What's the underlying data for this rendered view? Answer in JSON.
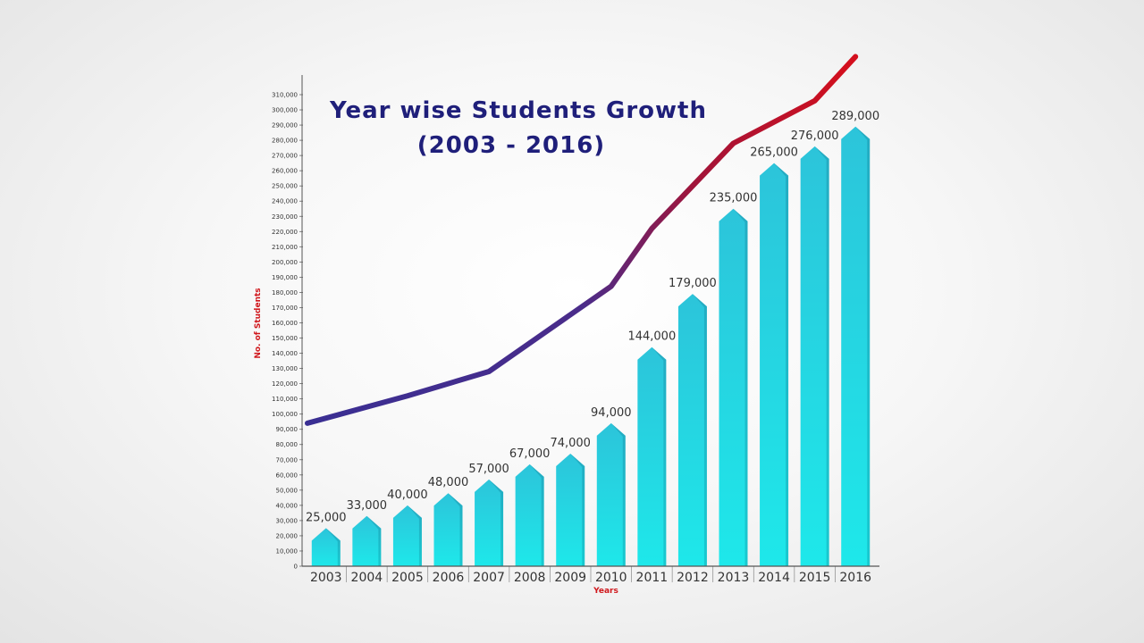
{
  "chart_data": {
    "type": "bar",
    "title": "Year wise Students Growth",
    "subtitle": "(2003 - 2016)",
    "xlabel": "Years",
    "ylabel": "No. of Students",
    "ylim": [
      0,
      310000
    ],
    "categories": [
      "2003",
      "2004",
      "2005",
      "2006",
      "2007",
      "2008",
      "2009",
      "2010",
      "2011",
      "2012",
      "2013",
      "2014",
      "2015",
      "2016"
    ],
    "values": [
      25000,
      33000,
      40000,
      48000,
      57000,
      67000,
      74000,
      94000,
      144000,
      179000,
      235000,
      265000,
      276000,
      289000
    ],
    "data_labels": [
      "25,000",
      "33,000",
      "40,000",
      "48,000",
      "57,000",
      "67,000",
      "74,000",
      "94,000",
      "144,000",
      "179,000",
      "235,000",
      "265,000",
      "276,000",
      "289,000"
    ],
    "yticks": [
      0,
      10000,
      20000,
      30000,
      40000,
      50000,
      60000,
      70000,
      80000,
      90000,
      100000,
      110000,
      120000,
      130000,
      140000,
      150000,
      160000,
      170000,
      180000,
      190000,
      200000,
      210000,
      220000,
      230000,
      240000,
      250000,
      260000,
      270000,
      280000,
      290000,
      300000,
      310000
    ],
    "ytick_labels": [
      "0",
      "10,000",
      "20,000",
      "30,000",
      "40,000",
      "50,000",
      "60,000",
      "70,000",
      "80,000",
      "90,000",
      "100,000",
      "110,000",
      "120,000",
      "130,000",
      "140,000",
      "150,000",
      "160,000",
      "170,000",
      "180,000",
      "190,000",
      "200,000",
      "210,000",
      "220,000",
      "230,000",
      "240,000",
      "250,000",
      "260,000",
      "270,000",
      "280,000",
      "290,000",
      "300,000",
      "310,000"
    ],
    "trend_line_y": [
      94000,
      112000,
      128000,
      184000,
      222000,
      278000,
      306000,
      335000
    ],
    "trend_line_x": [
      "2003",
      "2005",
      "2007",
      "2010",
      "2011",
      "2013",
      "2015",
      "2016"
    ],
    "bar_color_top": "#2cc4da",
    "bar_color_bottom": "#1ee8ea",
    "trend_color_start": "#3a2f93",
    "trend_color_end": "#d30f1d",
    "title_color": "#1f1f7a",
    "axis_label_color": "#d0171c"
  }
}
